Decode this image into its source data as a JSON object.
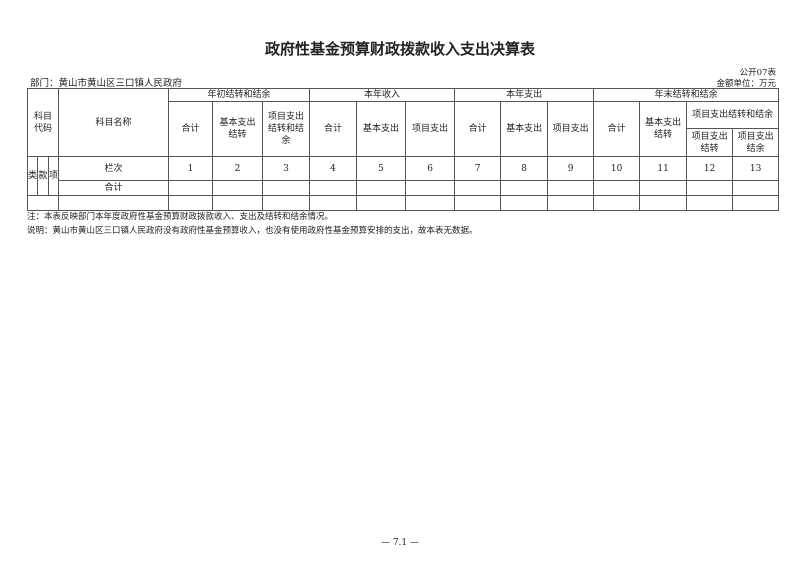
{
  "title": "政府性基金预算财政拨款收入支出决算表",
  "department": "部门：黄山市黄山区三口镇人民政府",
  "table_no": "公开07表",
  "unit": "金额单位：万元",
  "header": {
    "code": "科目代码",
    "name": "科目名称",
    "g1": "年初结转和结余",
    "g2": "本年收入",
    "g3": "本年支出",
    "g4": "年末结转和结余",
    "total": "合计",
    "basic_carry": "基本支出结转",
    "proj_carry_bal": "项目支出结转和结余",
    "basic": "基本支出",
    "project": "项目支出",
    "g4_proj": "项目支出结转和结余",
    "g4_proj_carry": "项目支出结转",
    "g4_proj_bal": "项目支出结余",
    "lei": "类",
    "kuan": "款",
    "xiang": "项"
  },
  "row_index_label": "栏次",
  "col_numbers": [
    "1",
    "2",
    "3",
    "4",
    "5",
    "6",
    "7",
    "8",
    "9",
    "10",
    "11",
    "12",
    "13"
  ],
  "total_label": "合计",
  "note1": "注：本表反映部门本年度政府性基金预算财政拨款收入、支出及结转和结余情况。",
  "note2": "说明：黄山市黄山区三口镇人民政府没有政府性基金预算收入，也没有使用政府性基金预算安排的支出，故本表无数据。",
  "page": "— 7.1 —"
}
